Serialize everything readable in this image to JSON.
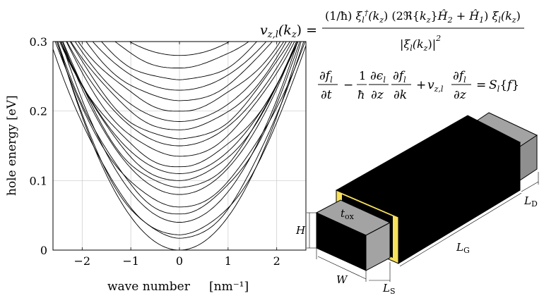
{
  "chart_data": {
    "type": "line",
    "title": "",
    "xlabel": "wave number",
    "xunit": "[nm⁻¹]",
    "ylabel": "hole energy  [eV]",
    "xlim": [
      -2.6,
      2.6
    ],
    "ylim": [
      0,
      0.3
    ],
    "xticks": [
      "−2",
      "−1",
      "0",
      "1",
      "2"
    ],
    "yticks": [
      "0",
      "0.1",
      "0.2",
      "0.3"
    ],
    "grid": true,
    "series": [
      {
        "min": 0.0,
        "curv": 0.048
      },
      {
        "min": 0.017,
        "curv": 0.044
      },
      {
        "min": 0.022,
        "curv": 0.04
      },
      {
        "min": 0.04,
        "curv": 0.044
      },
      {
        "min": 0.052,
        "curv": 0.04
      },
      {
        "min": 0.062,
        "curv": 0.036
      },
      {
        "min": 0.08,
        "curv": 0.038
      },
      {
        "min": 0.09,
        "curv": 0.036
      },
      {
        "min": 0.1,
        "curv": 0.034
      },
      {
        "min": 0.11,
        "curv": 0.032
      },
      {
        "min": 0.12,
        "curv": 0.03
      },
      {
        "min": 0.135,
        "curv": 0.03
      },
      {
        "min": 0.15,
        "curv": 0.028
      },
      {
        "min": 0.16,
        "curv": 0.027
      },
      {
        "min": 0.173,
        "curv": 0.026
      },
      {
        "min": 0.185,
        "curv": 0.025
      },
      {
        "min": 0.2,
        "curv": 0.024
      },
      {
        "min": 0.215,
        "curv": 0.023
      },
      {
        "min": 0.23,
        "curv": 0.022
      },
      {
        "min": 0.245,
        "curv": 0.021
      },
      {
        "min": 0.262,
        "curv": 0.02
      },
      {
        "min": 0.28,
        "curv": 0.019
      }
    ]
  },
  "equations": {
    "velocity_lhs": "v_{z,l}(k_z) =",
    "velocity_numerator": "(1/ħ) ξₗ†(k_z) (2ℜ{k_z}Ĥ₂ + Ĥ₁) ξₗ(k_z)",
    "velocity_denominator": "|ξₗ(k_z)|²",
    "boltzmann": "∂fₗ/∂t − (1/ħ)(∂εₗ/∂z)(∂fₗ/∂k) + v_{z,l}(∂fₗ/∂z) = Sₗ{f}"
  },
  "device": {
    "labels": {
      "tox": "t",
      "tox_sub": "ox",
      "H": "H",
      "W": "W",
      "LS": "L",
      "LS_sub": "S",
      "LG": "L",
      "LG_sub": "G",
      "LD": "L",
      "LD_sub": "D"
    },
    "colors": {
      "gate": "#000000",
      "contact": "#a3a3a3",
      "oxide": "#f8e15c"
    }
  }
}
